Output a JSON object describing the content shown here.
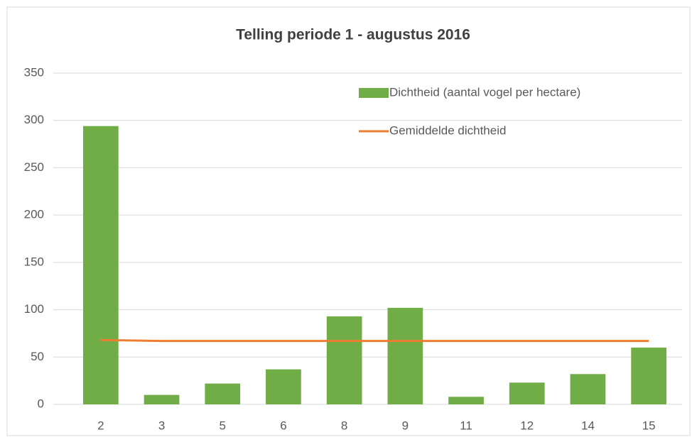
{
  "chart_data": {
    "type": "bar",
    "title": "Telling periode 1 - augustus 2016",
    "categories": [
      "2",
      "3",
      "5",
      "6",
      "8",
      "9",
      "11",
      "12",
      "14",
      "15"
    ],
    "series": [
      {
        "name": "Dichtheid (aantal vogel per hectare)",
        "type": "bar",
        "color": "#70ad47",
        "values": [
          294,
          10,
          22,
          37,
          93,
          102,
          8,
          23,
          32,
          60
        ]
      },
      {
        "name": "Gemiddelde dichtheid",
        "type": "line",
        "color": "#ed7d31",
        "values": [
          68,
          67,
          67,
          67,
          67,
          67,
          67,
          67,
          67,
          67
        ]
      }
    ],
    "ylim": [
      0,
      350
    ],
    "yticks": [
      0,
      50,
      100,
      150,
      200,
      250,
      300,
      350
    ],
    "grid": true,
    "legend": "top-right"
  }
}
